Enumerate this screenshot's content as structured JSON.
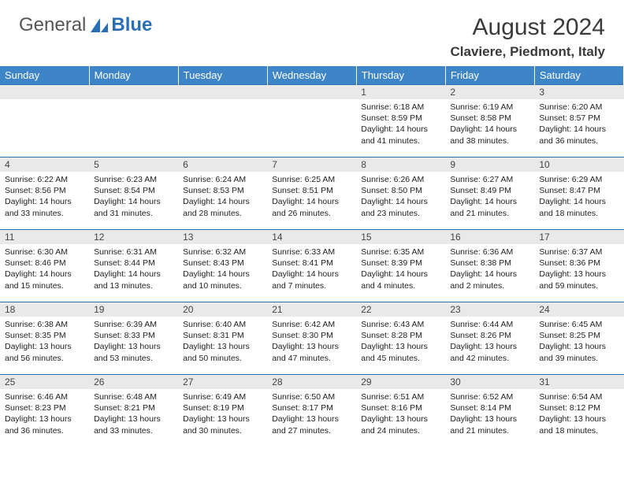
{
  "brand": {
    "part1": "General",
    "part2": "Blue"
  },
  "title": "August 2024",
  "location": "Claviere, Piedmont, Italy",
  "colors": {
    "header_bg": "#3d85c6",
    "border": "#2a6fb5",
    "daynum_bg": "#e9e9e9",
    "text": "#222222",
    "title_text": "#3a3a3a"
  },
  "day_names": [
    "Sunday",
    "Monday",
    "Tuesday",
    "Wednesday",
    "Thursday",
    "Friday",
    "Saturday"
  ],
  "weeks": [
    [
      null,
      null,
      null,
      null,
      {
        "n": "1",
        "sr": "6:18 AM",
        "ss": "8:59 PM",
        "dl": "14 hours and 41 minutes."
      },
      {
        "n": "2",
        "sr": "6:19 AM",
        "ss": "8:58 PM",
        "dl": "14 hours and 38 minutes."
      },
      {
        "n": "3",
        "sr": "6:20 AM",
        "ss": "8:57 PM",
        "dl": "14 hours and 36 minutes."
      }
    ],
    [
      {
        "n": "4",
        "sr": "6:22 AM",
        "ss": "8:56 PM",
        "dl": "14 hours and 33 minutes."
      },
      {
        "n": "5",
        "sr": "6:23 AM",
        "ss": "8:54 PM",
        "dl": "14 hours and 31 minutes."
      },
      {
        "n": "6",
        "sr": "6:24 AM",
        "ss": "8:53 PM",
        "dl": "14 hours and 28 minutes."
      },
      {
        "n": "7",
        "sr": "6:25 AM",
        "ss": "8:51 PM",
        "dl": "14 hours and 26 minutes."
      },
      {
        "n": "8",
        "sr": "6:26 AM",
        "ss": "8:50 PM",
        "dl": "14 hours and 23 minutes."
      },
      {
        "n": "9",
        "sr": "6:27 AM",
        "ss": "8:49 PM",
        "dl": "14 hours and 21 minutes."
      },
      {
        "n": "10",
        "sr": "6:29 AM",
        "ss": "8:47 PM",
        "dl": "14 hours and 18 minutes."
      }
    ],
    [
      {
        "n": "11",
        "sr": "6:30 AM",
        "ss": "8:46 PM",
        "dl": "14 hours and 15 minutes."
      },
      {
        "n": "12",
        "sr": "6:31 AM",
        "ss": "8:44 PM",
        "dl": "14 hours and 13 minutes."
      },
      {
        "n": "13",
        "sr": "6:32 AM",
        "ss": "8:43 PM",
        "dl": "14 hours and 10 minutes."
      },
      {
        "n": "14",
        "sr": "6:33 AM",
        "ss": "8:41 PM",
        "dl": "14 hours and 7 minutes."
      },
      {
        "n": "15",
        "sr": "6:35 AM",
        "ss": "8:39 PM",
        "dl": "14 hours and 4 minutes."
      },
      {
        "n": "16",
        "sr": "6:36 AM",
        "ss": "8:38 PM",
        "dl": "14 hours and 2 minutes."
      },
      {
        "n": "17",
        "sr": "6:37 AM",
        "ss": "8:36 PM",
        "dl": "13 hours and 59 minutes."
      }
    ],
    [
      {
        "n": "18",
        "sr": "6:38 AM",
        "ss": "8:35 PM",
        "dl": "13 hours and 56 minutes."
      },
      {
        "n": "19",
        "sr": "6:39 AM",
        "ss": "8:33 PM",
        "dl": "13 hours and 53 minutes."
      },
      {
        "n": "20",
        "sr": "6:40 AM",
        "ss": "8:31 PM",
        "dl": "13 hours and 50 minutes."
      },
      {
        "n": "21",
        "sr": "6:42 AM",
        "ss": "8:30 PM",
        "dl": "13 hours and 47 minutes."
      },
      {
        "n": "22",
        "sr": "6:43 AM",
        "ss": "8:28 PM",
        "dl": "13 hours and 45 minutes."
      },
      {
        "n": "23",
        "sr": "6:44 AM",
        "ss": "8:26 PM",
        "dl": "13 hours and 42 minutes."
      },
      {
        "n": "24",
        "sr": "6:45 AM",
        "ss": "8:25 PM",
        "dl": "13 hours and 39 minutes."
      }
    ],
    [
      {
        "n": "25",
        "sr": "6:46 AM",
        "ss": "8:23 PM",
        "dl": "13 hours and 36 minutes."
      },
      {
        "n": "26",
        "sr": "6:48 AM",
        "ss": "8:21 PM",
        "dl": "13 hours and 33 minutes."
      },
      {
        "n": "27",
        "sr": "6:49 AM",
        "ss": "8:19 PM",
        "dl": "13 hours and 30 minutes."
      },
      {
        "n": "28",
        "sr": "6:50 AM",
        "ss": "8:17 PM",
        "dl": "13 hours and 27 minutes."
      },
      {
        "n": "29",
        "sr": "6:51 AM",
        "ss": "8:16 PM",
        "dl": "13 hours and 24 minutes."
      },
      {
        "n": "30",
        "sr": "6:52 AM",
        "ss": "8:14 PM",
        "dl": "13 hours and 21 minutes."
      },
      {
        "n": "31",
        "sr": "6:54 AM",
        "ss": "8:12 PM",
        "dl": "13 hours and 18 minutes."
      }
    ]
  ],
  "labels": {
    "sunrise": "Sunrise:",
    "sunset": "Sunset:",
    "daylight": "Daylight:"
  }
}
